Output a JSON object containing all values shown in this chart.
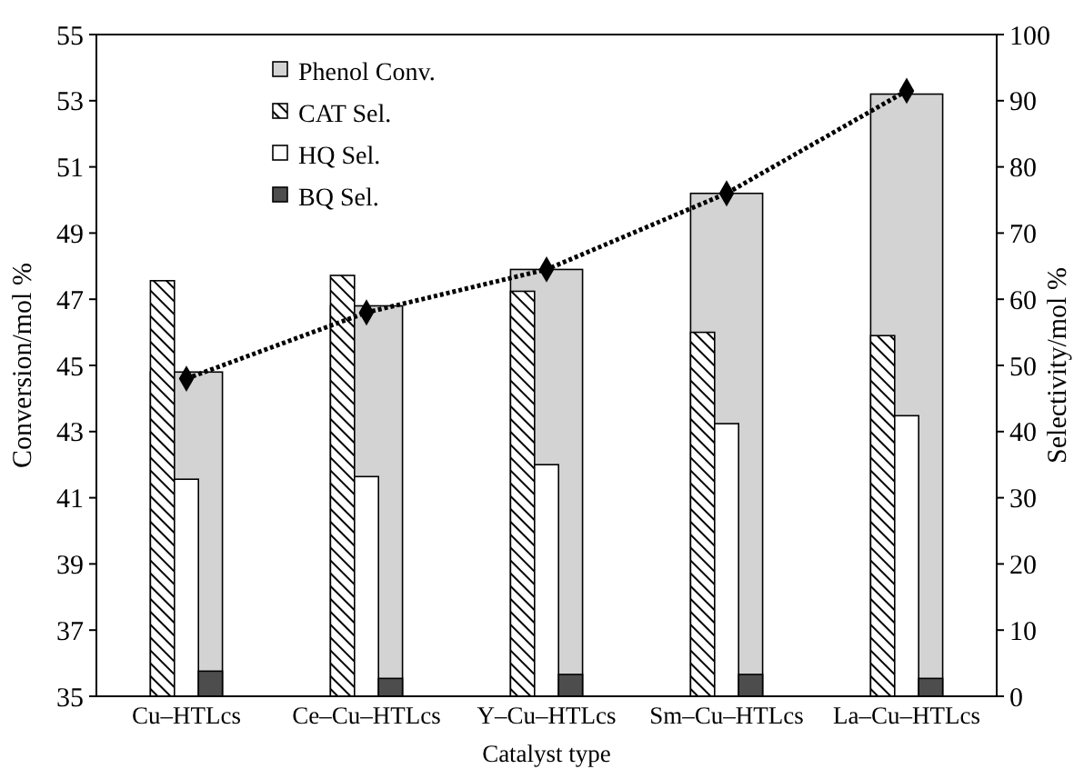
{
  "chart_data": {
    "type": "bar",
    "xlabel": "Catalyst type",
    "ylabel": "Conversion/mol %",
    "y2label": "Selectivity/mol %",
    "categories": [
      "Cu–HTLcs",
      "Ce–Cu–HTLcs",
      "Y–Cu–HTLcs",
      "Sm–Cu–HTLcs",
      "La–Cu–HTLcs"
    ],
    "ylim": [
      35,
      55
    ],
    "yticks": [
      35,
      37,
      39,
      41,
      43,
      45,
      47,
      49,
      51,
      53,
      55
    ],
    "y2lim": [
      0,
      100
    ],
    "y2ticks": [
      0,
      10,
      20,
      30,
      40,
      50,
      60,
      70,
      80,
      90,
      100
    ],
    "legend": "top left",
    "grid": false,
    "series": [
      {
        "name": "Phenol Conv.",
        "color": "#d3d3d3",
        "values": [
          44.8,
          46.8,
          47.9,
          50.2,
          53.2
        ]
      },
      {
        "name": "CAT Sel.",
        "axis": "y2",
        "color": "#000000",
        "values": [
          62.8,
          63.6,
          61.2,
          55.0,
          54.5
        ]
      },
      {
        "name": "HQ Sel.",
        "axis": "y2",
        "color": "#ffffff",
        "values": [
          32.8,
          33.2,
          35.0,
          41.2,
          42.4
        ]
      },
      {
        "name": "BQ Sel.",
        "axis": "y2",
        "color": "#4d4d4d",
        "values": [
          3.8,
          2.7,
          3.3,
          3.3,
          2.7
        ]
      },
      {
        "type": "line",
        "color": "#000000",
        "marker": "diamond",
        "line_style": "dotted",
        "values": [
          44.6,
          46.6,
          47.9,
          50.2,
          53.3
        ]
      }
    ]
  }
}
